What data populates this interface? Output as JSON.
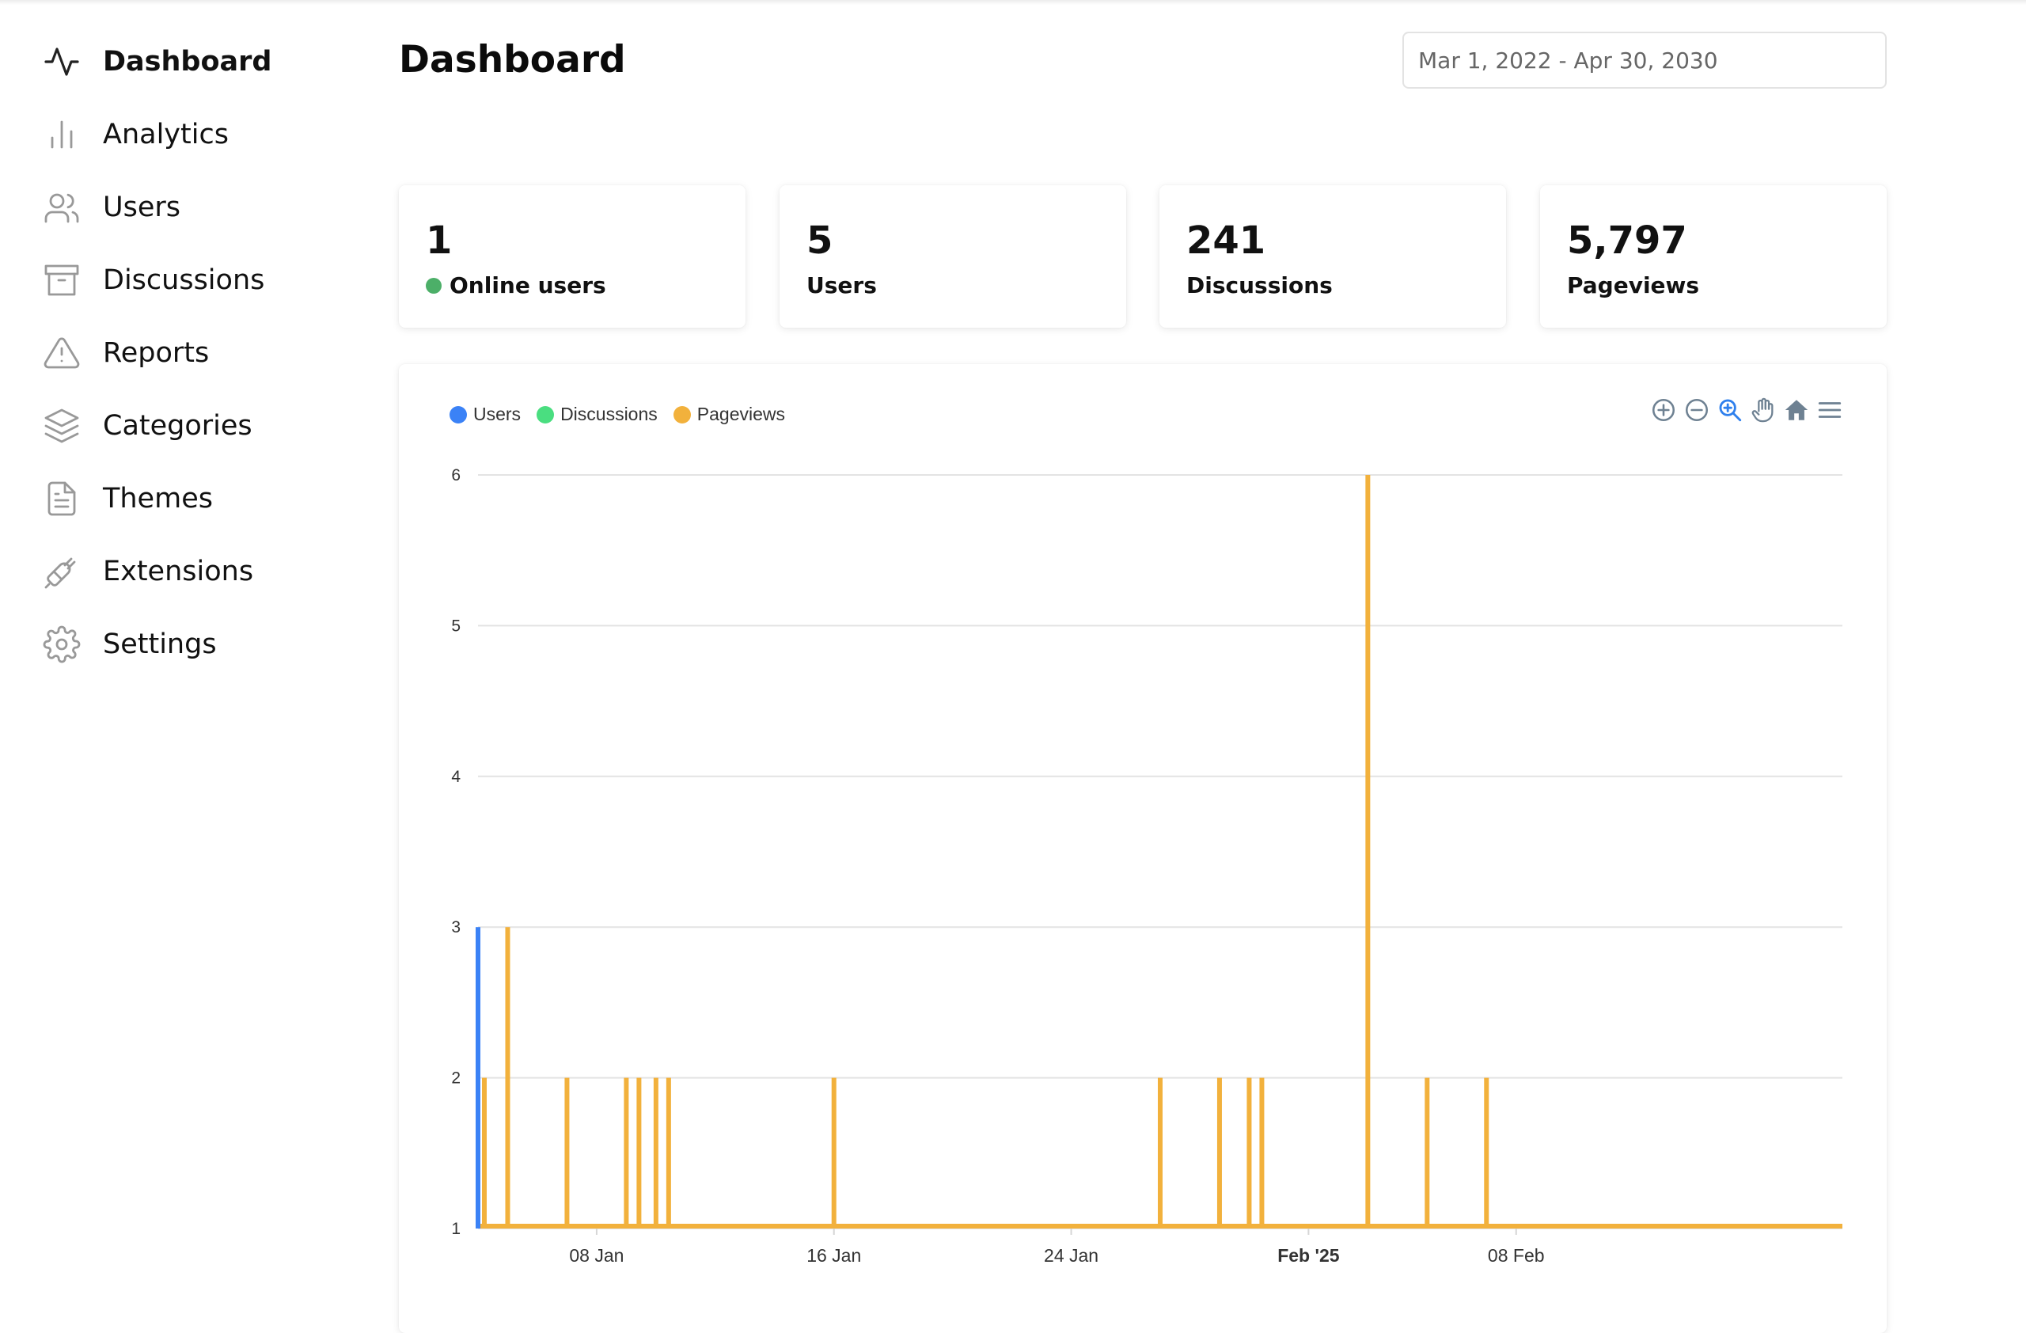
{
  "sidebar": {
    "items": [
      {
        "label": "Dashboard",
        "icon": "activity-icon",
        "active": true
      },
      {
        "label": "Analytics",
        "icon": "bar-chart-icon",
        "active": false
      },
      {
        "label": "Users",
        "icon": "users-icon",
        "active": false
      },
      {
        "label": "Discussions",
        "icon": "archive-icon",
        "active": false
      },
      {
        "label": "Reports",
        "icon": "alert-triangle-icon",
        "active": false
      },
      {
        "label": "Categories",
        "icon": "layers-icon",
        "active": false
      },
      {
        "label": "Themes",
        "icon": "file-text-icon",
        "active": false
      },
      {
        "label": "Extensions",
        "icon": "plug-icon",
        "active": false
      },
      {
        "label": "Settings",
        "icon": "gear-icon",
        "active": false
      }
    ]
  },
  "header": {
    "title": "Dashboard",
    "date_range": "Mar 1, 2022 - Apr 30, 2030"
  },
  "stats": [
    {
      "value": "1",
      "label": "Online users"
    },
    {
      "value": "5",
      "label": "Users"
    },
    {
      "value": "241",
      "label": "Discussions"
    },
    {
      "value": "5,797",
      "label": "Pageviews"
    }
  ],
  "colors": {
    "users": "#3b82f6",
    "discussions": "#4ade80",
    "pageviews": "#f2b13c",
    "online": "#4caf68",
    "toolbar": "#6e8192",
    "toolbar_active": "#2f80ed"
  },
  "chart_data": {
    "type": "bar",
    "legend": [
      "Users",
      "Discussions",
      "Pageviews"
    ],
    "legend_position": "top-left",
    "grid": true,
    "ylim": [
      1,
      6
    ],
    "y_ticks": [
      "1",
      "2",
      "3",
      "4",
      "5",
      "6"
    ],
    "x_range": [
      "2025-01-04",
      "2025-02-19"
    ],
    "x_ticks": [
      {
        "date": "2025-01-08",
        "label": "08 Jan",
        "bold": false
      },
      {
        "date": "2025-01-16",
        "label": "16 Jan",
        "bold": false
      },
      {
        "date": "2025-01-24",
        "label": "24 Jan",
        "bold": false
      },
      {
        "date": "2025-02-01",
        "label": "Feb '25",
        "bold": true
      },
      {
        "date": "2025-02-08",
        "label": "08 Feb",
        "bold": false
      }
    ],
    "series": [
      {
        "name": "Users",
        "points": [
          [
            "2025-01-04",
            3
          ]
        ]
      },
      {
        "name": "Discussions",
        "points": []
      },
      {
        "name": "Pageviews",
        "points": [
          [
            "2025-01-04",
            2
          ],
          [
            "2025-01-05",
            3
          ],
          [
            "2025-01-07",
            2
          ],
          [
            "2025-01-09",
            2
          ],
          [
            "2025-01-09",
            2
          ],
          [
            "2025-01-10",
            2
          ],
          [
            "2025-01-10",
            2
          ],
          [
            "2025-01-16",
            2
          ],
          [
            "2025-01-27",
            2
          ],
          [
            "2025-01-29",
            2
          ],
          [
            "2025-01-30",
            2
          ],
          [
            "2025-01-30",
            2
          ],
          [
            "2025-02-03",
            6
          ],
          [
            "2025-02-05",
            2
          ],
          [
            "2025-02-07",
            2
          ]
        ]
      }
    ]
  }
}
